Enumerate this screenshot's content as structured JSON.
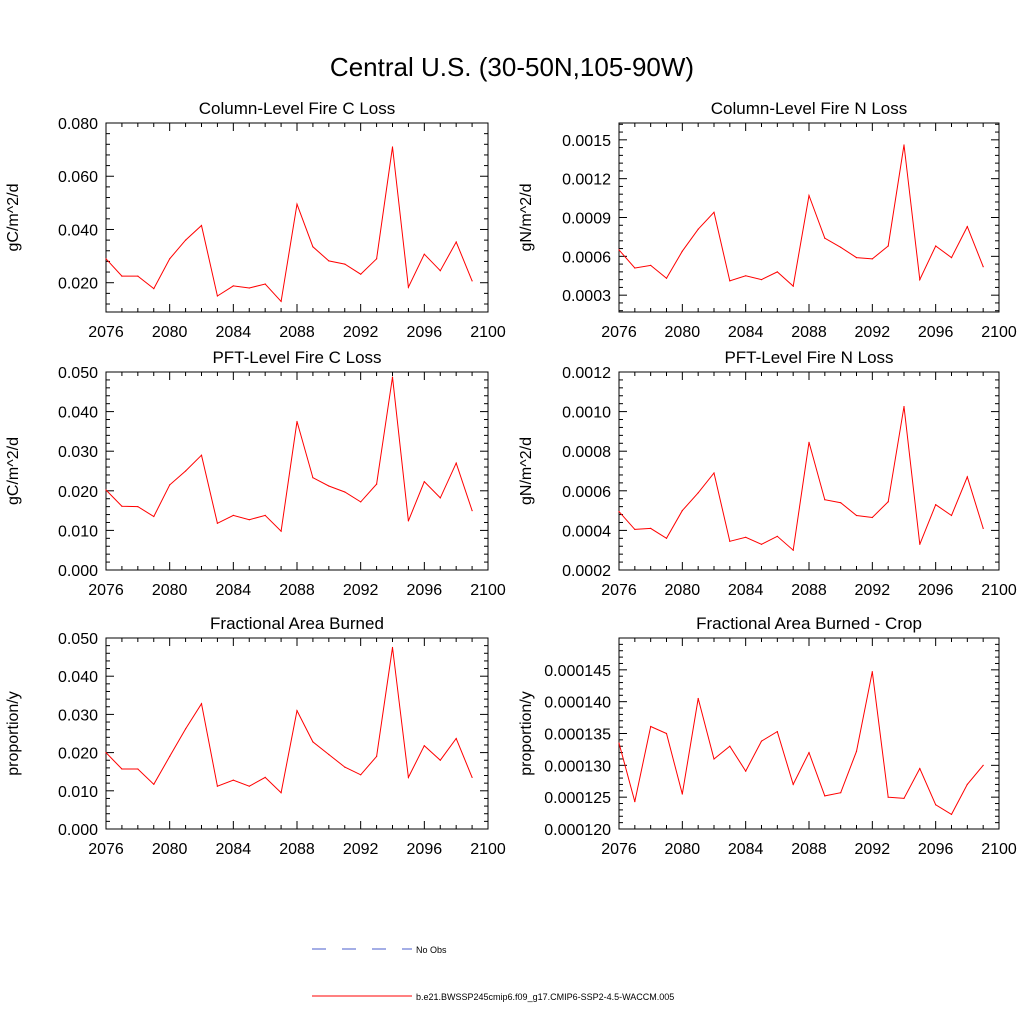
{
  "figure": {
    "title": "Central U.S. (30-50N,105-90W)"
  },
  "colors": {
    "series_line": "#ff0000",
    "obs_line": "#4a5ccc",
    "axis": "#000000",
    "background": "#ffffff"
  },
  "legend": {
    "placement": "bottom-center",
    "obs_label": "No Obs",
    "model_label": "b.e21.BWSSP245cmip6.f09_g17.CMIP6-SSP2-4.5-WACCM.005"
  },
  "chart_data": [
    {
      "type": "line",
      "title": "Column-Level Fire C Loss",
      "xlabel": "",
      "ylabel": "gC/m^2/d",
      "xlim": [
        2076,
        2100
      ],
      "ylim": [
        0.009,
        0.08
      ],
      "xticks": [
        2076,
        2080,
        2084,
        2088,
        2092,
        2096,
        2100
      ],
      "yticks": [
        0.02,
        0.04,
        0.06,
        0.08
      ],
      "ytick_labels": [
        "0.020",
        "0.040",
        "0.060",
        "0.080"
      ],
      "grid": false,
      "series": [
        {
          "x": [
            2076,
            2077,
            2078,
            2079,
            2080,
            2081,
            2082,
            2083,
            2084,
            2085,
            2086,
            2087,
            2088,
            2089,
            2090,
            2091,
            2092,
            2093,
            2094,
            2095,
            2096,
            2097,
            2098,
            2099
          ],
          "values": [
            0.029,
            0.0225,
            0.0225,
            0.0178,
            0.029,
            0.036,
            0.0415,
            0.015,
            0.0188,
            0.018,
            0.0195,
            0.013,
            0.0495,
            0.0335,
            0.0282,
            0.027,
            0.0232,
            0.029,
            0.071,
            0.0183,
            0.0307,
            0.0245,
            0.0353,
            0.0207
          ]
        }
      ]
    },
    {
      "type": "line",
      "title": "Column-Level Fire N Loss",
      "xlabel": "",
      "ylabel": "gN/m^2/d",
      "xlim": [
        2076,
        2100
      ],
      "ylim": [
        0.00017,
        0.00163
      ],
      "xticks": [
        2076,
        2080,
        2084,
        2088,
        2092,
        2096,
        2100
      ],
      "yticks": [
        0.0003,
        0.0006,
        0.0009,
        0.0012,
        0.0015
      ],
      "ytick_labels": [
        "0.0003",
        "0.0006",
        "0.0009",
        "0.0012",
        "0.0015"
      ],
      "grid": false,
      "series": [
        {
          "x": [
            2076,
            2077,
            2078,
            2079,
            2080,
            2081,
            2082,
            2083,
            2084,
            2085,
            2086,
            2087,
            2088,
            2089,
            2090,
            2091,
            2092,
            2093,
            2094,
            2095,
            2096,
            2097,
            2098,
            2099
          ],
          "values": [
            0.00065,
            0.00051,
            0.00053,
            0.00043,
            0.00064,
            0.00081,
            0.00094,
            0.00041,
            0.00045,
            0.00042,
            0.00048,
            0.00037,
            0.00107,
            0.00074,
            0.00067,
            0.00059,
            0.00058,
            0.00068,
            0.00146,
            0.00042,
            0.00068,
            0.00059,
            0.00083,
            0.00052
          ]
        }
      ]
    },
    {
      "type": "line",
      "title": "PFT-Level Fire C Loss",
      "xlabel": "",
      "ylabel": "gC/m^2/d",
      "xlim": [
        2076,
        2100
      ],
      "ylim": [
        0.0,
        0.05
      ],
      "xticks": [
        2076,
        2080,
        2084,
        2088,
        2092,
        2096,
        2100
      ],
      "yticks": [
        0.0,
        0.01,
        0.02,
        0.03,
        0.04,
        0.05
      ],
      "ytick_labels": [
        "0.000",
        "0.010",
        "0.020",
        "0.030",
        "0.040",
        "0.050"
      ],
      "grid": false,
      "series": [
        {
          "x": [
            2076,
            2077,
            2078,
            2079,
            2080,
            2081,
            2082,
            2083,
            2084,
            2085,
            2086,
            2087,
            2088,
            2089,
            2090,
            2091,
            2092,
            2093,
            2094,
            2095,
            2096,
            2097,
            2098,
            2099
          ],
          "values": [
            0.0202,
            0.0161,
            0.016,
            0.0135,
            0.0215,
            0.025,
            0.029,
            0.0118,
            0.0138,
            0.0127,
            0.0138,
            0.0098,
            0.0375,
            0.0233,
            0.0212,
            0.0197,
            0.0172,
            0.0217,
            0.0487,
            0.0124,
            0.0223,
            0.0182,
            0.027,
            0.015
          ]
        }
      ]
    },
    {
      "type": "line",
      "title": "PFT-Level Fire N Loss",
      "xlabel": "",
      "ylabel": "gN/m^2/d",
      "xlim": [
        2076,
        2100
      ],
      "ylim": [
        0.0002,
        0.0012
      ],
      "xticks": [
        2076,
        2080,
        2084,
        2088,
        2092,
        2096,
        2100
      ],
      "yticks": [
        0.0002,
        0.0004,
        0.0006,
        0.0008,
        0.001,
        0.0012
      ],
      "ytick_labels": [
        "0.0002",
        "0.0004",
        "0.0006",
        "0.0008",
        "0.0010",
        "0.0012"
      ],
      "grid": false,
      "series": [
        {
          "x": [
            2076,
            2077,
            2078,
            2079,
            2080,
            2081,
            2082,
            2083,
            2084,
            2085,
            2086,
            2087,
            2088,
            2089,
            2090,
            2091,
            2092,
            2093,
            2094,
            2095,
            2096,
            2097,
            2098,
            2099
          ],
          "values": [
            0.000495,
            0.000405,
            0.00041,
            0.00036,
            0.0005,
            0.00059,
            0.00069,
            0.000345,
            0.000365,
            0.00033,
            0.00037,
            0.0003,
            0.000845,
            0.000555,
            0.00054,
            0.000475,
            0.000465,
            0.000545,
            0.001025,
            0.00033,
            0.00053,
            0.000475,
            0.00067,
            0.00041
          ]
        }
      ]
    },
    {
      "type": "line",
      "title": "Fractional Area Burned",
      "xlabel": "",
      "ylabel": "proportion/y",
      "xlim": [
        2076,
        2100
      ],
      "ylim": [
        0.0,
        0.05
      ],
      "xticks": [
        2076,
        2080,
        2084,
        2088,
        2092,
        2096,
        2100
      ],
      "yticks": [
        0.0,
        0.01,
        0.02,
        0.03,
        0.04,
        0.05
      ],
      "ytick_labels": [
        "0.000",
        "0.010",
        "0.020",
        "0.030",
        "0.040",
        "0.050"
      ],
      "grid": false,
      "series": [
        {
          "x": [
            2076,
            2077,
            2078,
            2079,
            2080,
            2081,
            2082,
            2083,
            2084,
            2085,
            2086,
            2087,
            2088,
            2089,
            2090,
            2091,
            2092,
            2093,
            2094,
            2095,
            2096,
            2097,
            2098,
            2099
          ],
          "values": [
            0.02,
            0.0157,
            0.0157,
            0.0117,
            0.019,
            0.0262,
            0.0328,
            0.0112,
            0.0128,
            0.0112,
            0.0135,
            0.0095,
            0.031,
            0.0228,
            0.0195,
            0.0162,
            0.0142,
            0.019,
            0.0475,
            0.0135,
            0.0218,
            0.018,
            0.0237,
            0.0135
          ]
        }
      ]
    },
    {
      "type": "line",
      "title": "Fractional Area Burned - Crop",
      "xlabel": "",
      "ylabel": "proportion/y",
      "xlim": [
        2076,
        2100
      ],
      "ylim": [
        0.00012,
        0.00015
      ],
      "xticks": [
        2076,
        2080,
        2084,
        2088,
        2092,
        2096,
        2100
      ],
      "yticks": [
        0.00012,
        0.000125,
        0.00013,
        0.000135,
        0.00014,
        0.000145
      ],
      "ytick_labels": [
        "0.000120",
        "0.000125",
        "0.000130",
        "0.000135",
        "0.000140",
        "0.000145"
      ],
      "grid": false,
      "series": [
        {
          "x": [
            2076,
            2077,
            2078,
            2079,
            2080,
            2081,
            2082,
            2083,
            2084,
            2085,
            2086,
            2087,
            2088,
            2089,
            2090,
            2091,
            2092,
            2093,
            2094,
            2095,
            2096,
            2097,
            2098,
            2099
          ],
          "values": [
            0.0001335,
            0.0001243,
            0.0001361,
            0.000135,
            0.0001255,
            0.0001405,
            0.000131,
            0.000133,
            0.0001291,
            0.0001338,
            0.0001353,
            0.000127,
            0.000132,
            0.0001252,
            0.0001257,
            0.0001322,
            0.0001447,
            0.000125,
            0.0001248,
            0.0001295,
            0.0001238,
            0.0001223,
            0.000127,
            0.00013
          ]
        }
      ]
    }
  ]
}
